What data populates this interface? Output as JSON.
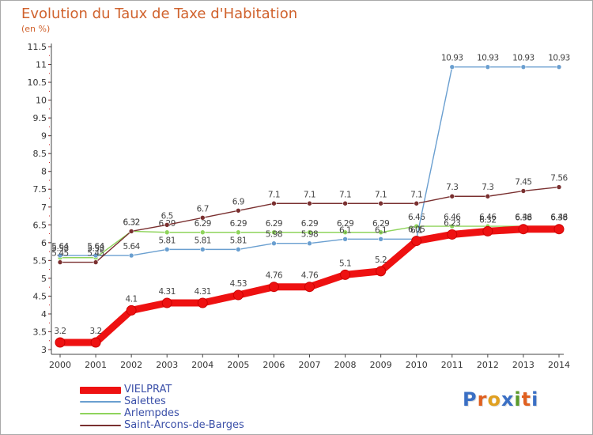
{
  "header": {
    "title": "Evolution du Taux de Taxe d'Habitation",
    "unit": "(en %)"
  },
  "logo": {
    "text": "Proxiti",
    "letter_colors": [
      "#3a6fc4",
      "#e06020",
      "#e0a020",
      "#3a6fc4",
      "#5a9a2a",
      "#e06020",
      "#3a6fc4"
    ]
  },
  "chart_data": {
    "type": "line",
    "x": [
      "2000",
      "2001",
      "2002",
      "2003",
      "2004",
      "2005",
      "2006",
      "2007",
      "2008",
      "2009",
      "2010",
      "2011",
      "2012",
      "2013",
      "2014"
    ],
    "ylim": [
      3,
      11.5
    ],
    "yticks": [
      "3",
      "3.5",
      "4",
      "4.5",
      "5",
      "5.5",
      "6",
      "6.5",
      "7",
      "7.5",
      "8",
      "8.5",
      "9",
      "9.5",
      "10",
      "10.5",
      "11",
      "11.5"
    ],
    "grid": false,
    "legend_position": "bottom-left",
    "series": [
      {
        "name": "Arlempdes",
        "color": "#8fd45c",
        "values": [
          5.58,
          5.58,
          6.32,
          6.29,
          6.29,
          6.29,
          6.29,
          6.29,
          6.29,
          6.29,
          6.46,
          6.46,
          6.46,
          6.46,
          6.46
        ],
        "labels": [
          "5.58",
          "5.58",
          "6.32",
          "6.29",
          "6.29",
          "6.29",
          "6.29",
          "6.29",
          "6.29",
          "6.29",
          "6.46",
          "6.46",
          "6.46",
          "6.46",
          "6.46"
        ],
        "show_labels": false
      },
      {
        "name": "Salettes",
        "color": "#6a9fd0",
        "values": [
          5.64,
          5.64,
          5.64,
          5.81,
          5.81,
          5.81,
          5.98,
          5.98,
          6.1,
          6.1,
          6.1,
          10.93,
          10.93,
          10.93,
          10.93
        ],
        "labels": [
          "5.64",
          "5.64",
          "5.64",
          "5.81",
          "5.81",
          "5.81",
          "5.98",
          "5.98",
          "6.1",
          "6.1",
          "6.1",
          "10.93",
          "10.93",
          "10.93",
          "10.93"
        ],
        "show_labels": true
      },
      {
        "name": "Saint-Arcons-de-Barges",
        "color": "#7a3030",
        "values": [
          5.45,
          5.45,
          6.32,
          6.5,
          6.7,
          6.9,
          7.1,
          7.1,
          7.1,
          7.1,
          7.1,
          7.3,
          7.3,
          7.45,
          7.56
        ],
        "labels": [
          "5.45",
          "5.45",
          "6.32",
          "6.5",
          "6.7",
          "6.9",
          "7.1",
          "7.1",
          "7.1",
          "7.1",
          "7.1",
          "7.3",
          "7.3",
          "7.45",
          "7.56"
        ],
        "show_labels": true
      },
      {
        "name": "VIELPRAT",
        "color": "#ee1111",
        "values": [
          3.2,
          3.2,
          4.1,
          4.31,
          4.31,
          4.53,
          4.76,
          4.76,
          5.1,
          5.2,
          6.05,
          6.23,
          6.32,
          6.38,
          6.38
        ],
        "labels": [
          "3.2",
          "3.2",
          "4.1",
          "4.31",
          "4.31",
          "4.53",
          "4.76",
          "4.76",
          "5.1",
          "5.2",
          "6.05",
          "6.23",
          "6.32",
          "6.38",
          "6.38"
        ],
        "show_labels": true
      }
    ],
    "legend": [
      "VIELPRAT",
      "Salettes",
      "Arlempdes",
      "Saint-Arcons-de-Barges"
    ]
  }
}
